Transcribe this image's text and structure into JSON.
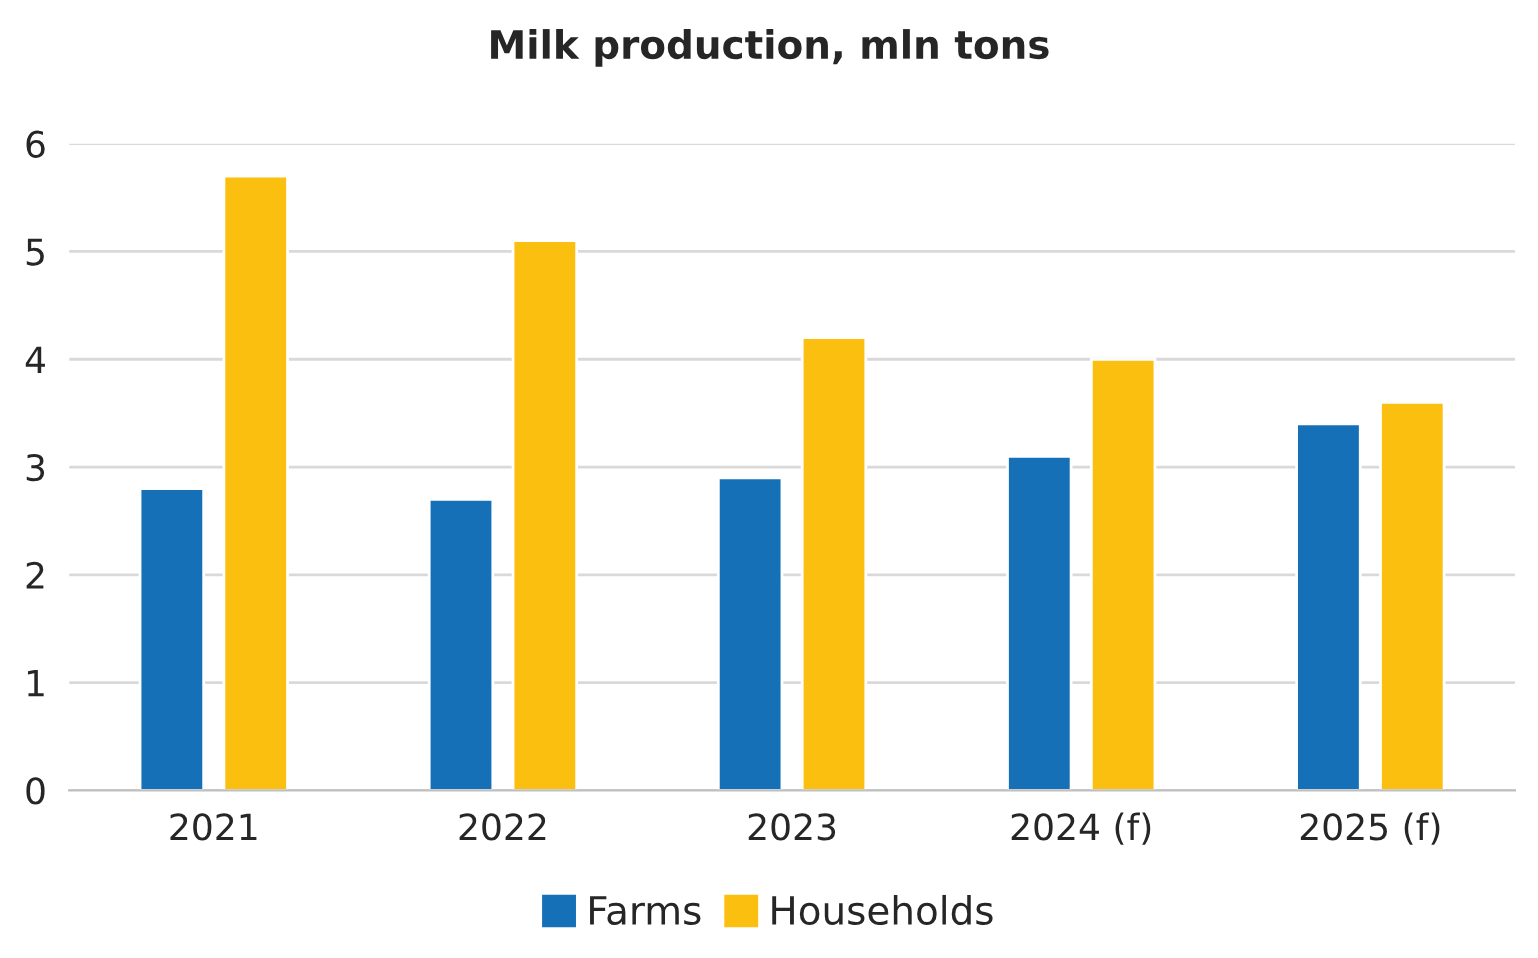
{
  "chart_data": {
    "type": "bar",
    "title": "Milk production, mln tons",
    "categories": [
      "2021",
      "2022",
      "2023",
      "2024 (f)",
      "2025 (f)"
    ],
    "series": [
      {
        "name": "Farms",
        "color": "#1570b8",
        "values": [
          2.8,
          2.7,
          2.9,
          3.1,
          3.4
        ]
      },
      {
        "name": "Households",
        "color": "#fbbf10",
        "values": [
          5.7,
          5.1,
          4.2,
          4.0,
          3.6
        ]
      }
    ],
    "ylim": [
      0,
      6
    ],
    "yticks": [
      0,
      1,
      2,
      3,
      4,
      5,
      6
    ],
    "grid": "y",
    "legend": "bottom"
  }
}
